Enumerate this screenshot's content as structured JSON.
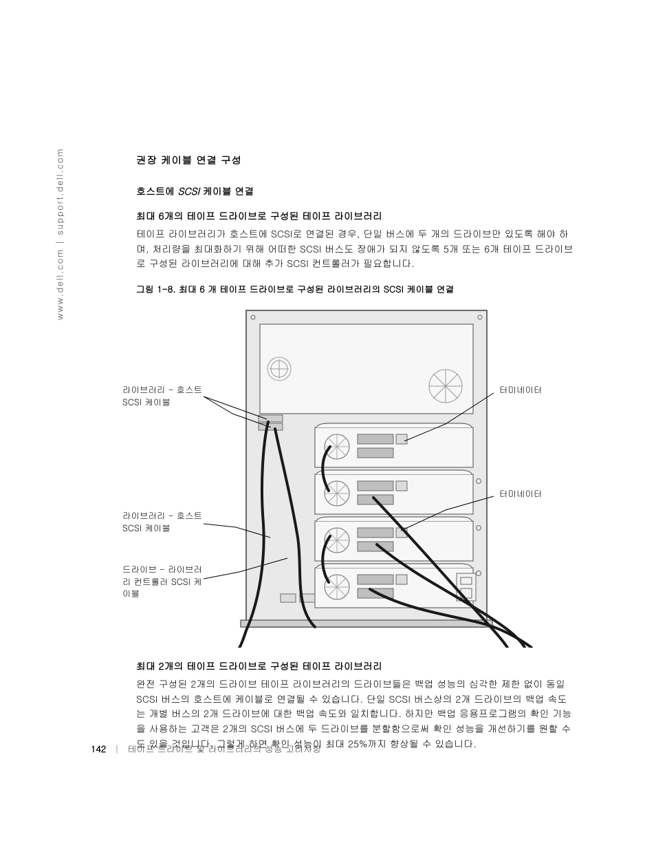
{
  "side_url": "www.dell.com | support.dell.com",
  "sections": {
    "h3": "권장 케이블 연결 구성",
    "h4_prefix": "호스트에 ",
    "h4_ital": "SCSI",
    "h4_suffix": " 케이블 연결",
    "sub1": "최대 6개의 테이프 드라이브로 구성된 테이프 라이브러리",
    "p1": "테이프 라이브러리가 호스트에 SCSI로 연결된 경우, 단일 버스에 두 개의 드라이브만 있도록 해야 하며, 처리량을 최대화하기 위해 어떠한 SCSI 버스도 장애가 되지 않도록 5개 또는 6개 테이프 드라이브로 구성된 라이브러리에 대해 추가 SCSI 컨트롤러가 필요합니다.",
    "fig_caption": "그림 1-8.   최대 6 개 테이프 드라이브로 구성된 라이브러리의 SCSI 케이블 연결",
    "sub2": "최대 2개의 테이프 드라이브로 구성된 테이프 라이브러리",
    "p2": "완전 구성된 2개의 드라이브 테이프 라이브러리의 드라이브들은 백업 성능의 심각한 제한 없이 동일 SCSI 버스의 호스트에 케이블로 연결될 수 있습니다. 단일 SCSI 버스상의 2개 드라이브의 백업 속도는 개별 버스의 2개 드라이브에 대한 백업 속도와 일치합니다. 하지만 백업 응용프로그램의 확인 기능을 사용하는 고객은 2개의 SCSI 버스에 두 드라이브를 분할함으로써 확인 성능을 개선하기를 원할 수도 있을 것입니다. 그렇게 하면 확인 성능이 최대 25%까지 향상될 수 있습니다."
  },
  "callouts": {
    "left1": "라이브러리 - 호스트 SCSI 케이블",
    "left2": "라이브러리 - 호스트 SCSI 케이블",
    "left3": "드라이브 - 라이브러리 컨트롤러 SCSI 케이블",
    "right1": "터미네이터",
    "right2": "터미네이터"
  },
  "footer": {
    "page": "142",
    "title": "테이프 드라이브 및 라이브러리의 성능 고려사항"
  },
  "diagram": {
    "chassis_fill": "#e9e9e9",
    "module_fill": "#f7f7f7",
    "stroke": "#6a6a6a",
    "cable": "#1a1a1a",
    "line": "#000000",
    "accent": "#bfbfbf"
  }
}
